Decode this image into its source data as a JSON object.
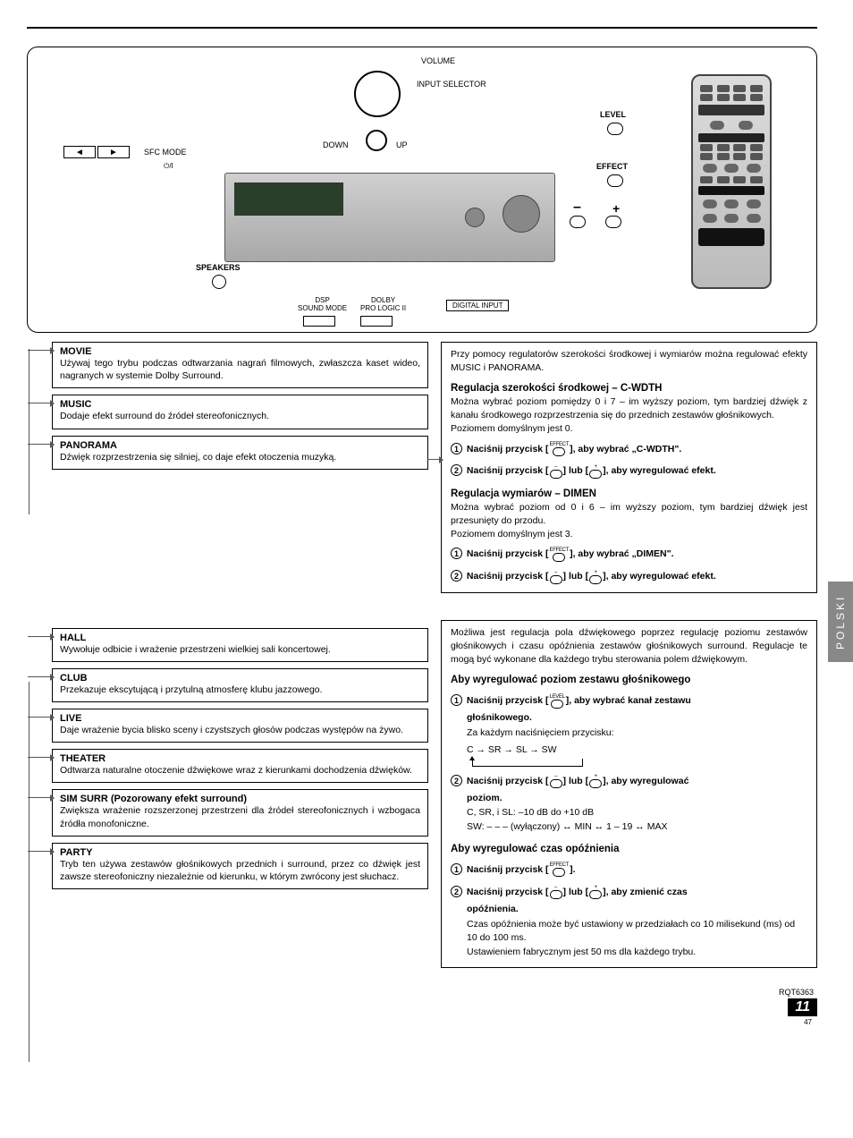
{
  "diagram": {
    "volume": "VOLUME",
    "input_selector": "INPUT SELECTOR",
    "down": "DOWN",
    "up": "UP",
    "sfc_mode": "SFC MODE",
    "level": "LEVEL",
    "effect": "EFFECT",
    "minus": "–",
    "plus": "+",
    "speakers": "SPEAKERS",
    "dsp_sound_mode": "DSP\nSOUND MODE",
    "dolby_prologic": "DOLBY\nPRO LOGIC II",
    "digital_input": "DIGITAL INPUT",
    "left_arrow": "◄",
    "right_arrow": "►",
    "power_icon": "⏻/I"
  },
  "modes_top": [
    {
      "title": "MOVIE",
      "desc": "Używaj tego trybu podczas odtwarzania nagrań filmowych, zwłaszcza kaset wideo, nagranych w systemie Dolby Surround."
    },
    {
      "title": "MUSIC",
      "desc": "Dodaje efekt surround do źródeł stereofonicznych."
    },
    {
      "title": "PANORAMA",
      "desc": "Dźwięk rozprzestrzenia się silniej, co daje efekt otoczenia muzyką."
    }
  ],
  "modes_bottom": [
    {
      "title": "HALL",
      "desc": "Wywołuje odbicie i wrażenie przestrzeni wielkiej sali koncertowej."
    },
    {
      "title": "CLUB",
      "desc": "Przekazuje ekscytującą i przytulną atmosferę klubu jazzowego."
    },
    {
      "title": "LIVE",
      "desc": "Daje wrażenie bycia blisko sceny i czystszych głosów podczas występów na żywo."
    },
    {
      "title": "THEATER",
      "desc": "Odtwarza naturalne otoczenie dźwiękowe wraz z kierunkami dochodzenia dźwięków."
    },
    {
      "title": "SIM SURR (Pozorowany efekt surround)",
      "desc": "Zwiększa wrażenie rozszerzonej przestrzeni dla źródeł stereofonicznych i wzbogaca źródła monofoniczne."
    },
    {
      "title": "PARTY",
      "desc": "Tryb ten używa zestawów głośnikowych przednich i surround, przez co dźwięk jest zawsze stereofoniczny niezależnie od kierunku, w którym zwrócony jest słuchacz."
    }
  ],
  "right_top": {
    "intro": "Przy pomocy regulatorów szerokości środkowej i wymiarów można regulować efekty MUSIC i PANORAMA.",
    "cwdth_head": "Regulacja szerokości środkowej – C-WDTH",
    "cwdth_body": "Można wybrać poziom pomiędzy 0 i 7 – im wyższy poziom, tym bardziej dźwięk z kanału środkowego rozprzestrzenia się do przednich zestawów głośnikowych.\nPoziomem domyślnym jest 0.",
    "step1_pre": "Naciśnij przycisk [",
    "step1_label": "EFFECT",
    "step1_post": "], aby wybrać „C-WDTH\".",
    "step2_pre": "Naciśnij przycisk [",
    "step2_mid": "] lub [",
    "step2_post": "], aby wyregulować efekt.",
    "dimen_head": "Regulacja wymiarów – DIMEN",
    "dimen_body": "Można wybrać poziom od 0 i 6 – im wyższy poziom, tym bardziej dźwięk jest przesunięty do przodu.\nPoziomem domyślnym jest 3.",
    "dstep1_post": "], aby wybrać „DIMEN\"."
  },
  "right_bottom": {
    "intro": "Możliwa jest regulacja pola dźwiękowego poprzez regulację poziomu zestawów głośnikowych i czasu opóźnienia zestawów głośnikowych surround. Regulacje te mogą być wykonane dla każdego trybu sterowania polem dźwiękowym.",
    "speaker_head": "Aby wyregulować poziom zestawu głośnikowego",
    "s1_pre": "Naciśnij przycisk [",
    "s1_label": "LEVEL",
    "s1_post": "], aby wybrać kanał zestawu",
    "s1_cont": "głośnikowego.",
    "s1_note": "Za każdym naciśnięciem przycisku:",
    "s1_flow": "C → SR → SL → SW",
    "s2_pre": "Naciśnij przycisk [",
    "s2_mid": "] lub [",
    "s2_post": "], aby wyregulować",
    "s2_cont": "poziom.",
    "ranges_1": "C, SR, i SL:  –10 dB do +10 dB",
    "ranges_2": "SW:              – – – (wyłączony) ↔ MIN ↔ 1 – 19 ↔ MAX",
    "delay_head": "Aby wyregulować czas opóźnienia",
    "d1_pre": "Naciśnij przycisk [",
    "d1_label": "EFFECT",
    "d1_post": "].",
    "d2_pre": "Naciśnij przycisk [",
    "d2_mid": "] lub [",
    "d2_post": "], aby zmienić czas",
    "d2_cont": "opóźnienia.",
    "d_note1": "Czas opóźnienia może być ustawiony w przedziałach co 10 milisekund (ms) od 10 do 100 ms.",
    "d_note2": "Ustawieniem fabrycznym jest 50 ms dla każdego trybu."
  },
  "side_tab": "POLSKI",
  "footer": {
    "code": "RQT6363",
    "page": "11",
    "small": "47"
  }
}
